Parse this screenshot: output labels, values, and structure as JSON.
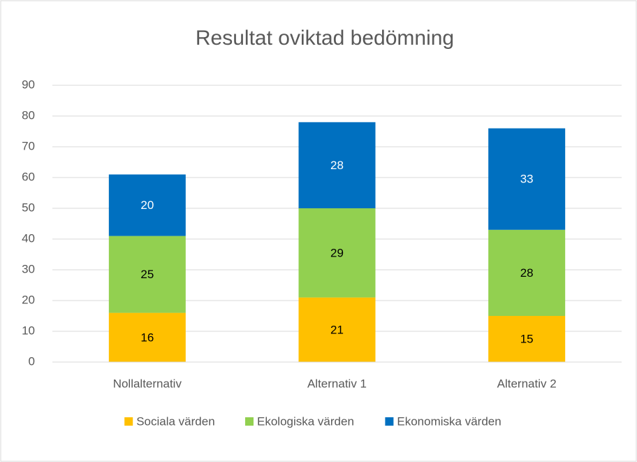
{
  "chart_data": {
    "type": "stacked_bar",
    "title": "Resultat oviktad bedömning",
    "categories": [
      "Nollalternativ",
      "Alternativ 1",
      "Alternativ 2"
    ],
    "series": [
      {
        "name": "Sociala värden",
        "color": "#ffc000",
        "label_color": "#000000",
        "values": [
          16,
          21,
          15
        ]
      },
      {
        "name": "Ekologiska värden",
        "color": "#92d050",
        "label_color": "#000000",
        "values": [
          25,
          29,
          28
        ]
      },
      {
        "name": "Ekonomiska värden",
        "color": "#0070c0",
        "label_color": "#ffffff",
        "values": [
          20,
          28,
          33
        ]
      }
    ],
    "ylim": [
      0,
      90
    ],
    "yticks": [
      0,
      10,
      20,
      30,
      40,
      50,
      60,
      70,
      80,
      90
    ],
    "grid": true,
    "legend": "bottom"
  }
}
